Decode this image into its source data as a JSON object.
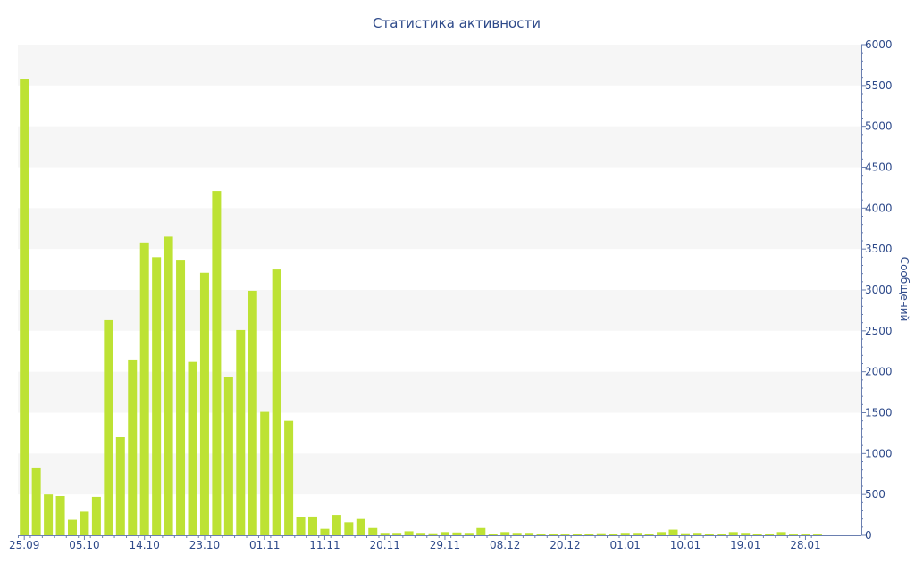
{
  "chart_data": {
    "type": "bar",
    "title": "Статистика активности",
    "ylabel": "Сообщений",
    "xlabel": "",
    "ylim": [
      0,
      6000
    ],
    "yticks": [
      0,
      500,
      1000,
      1500,
      2000,
      2500,
      3000,
      3500,
      4000,
      4500,
      5000,
      5500,
      6000
    ],
    "y_axis_position": "right",
    "grid": "alternating horizontal bands",
    "colors": {
      "bar": "#bde234",
      "text": "#2e4a8a",
      "axis": "#6a7fb0",
      "band": "#f6f6f6"
    },
    "x_tick_labels": [
      {
        "index": 0,
        "label": "25.09"
      },
      {
        "index": 5,
        "label": "05.10"
      },
      {
        "index": 10,
        "label": "14.10"
      },
      {
        "index": 15,
        "label": "23.10"
      },
      {
        "index": 20,
        "label": "01.11"
      },
      {
        "index": 25,
        "label": "11.11"
      },
      {
        "index": 30,
        "label": "20.11"
      },
      {
        "index": 35,
        "label": "29.11"
      },
      {
        "index": 40,
        "label": "08.12"
      },
      {
        "index": 45,
        "label": "20.12"
      },
      {
        "index": 50,
        "label": "01.01"
      },
      {
        "index": 55,
        "label": "10.01"
      },
      {
        "index": 60,
        "label": "19.01"
      },
      {
        "index": 65,
        "label": "28.01"
      }
    ],
    "values": [
      5580,
      830,
      500,
      480,
      190,
      290,
      470,
      2630,
      1200,
      2150,
      3580,
      3400,
      3650,
      3370,
      2120,
      3210,
      4210,
      1940,
      2510,
      2990,
      1510,
      3250,
      1400,
      220,
      230,
      80,
      250,
      160,
      200,
      90,
      30,
      30,
      50,
      30,
      25,
      40,
      35,
      30,
      90,
      20,
      40,
      30,
      30,
      15,
      15,
      10,
      15,
      15,
      25,
      15,
      30,
      30,
      20,
      40,
      70,
      25,
      30,
      20,
      20,
      40,
      30,
      15,
      15,
      40,
      10,
      10,
      10
    ]
  }
}
